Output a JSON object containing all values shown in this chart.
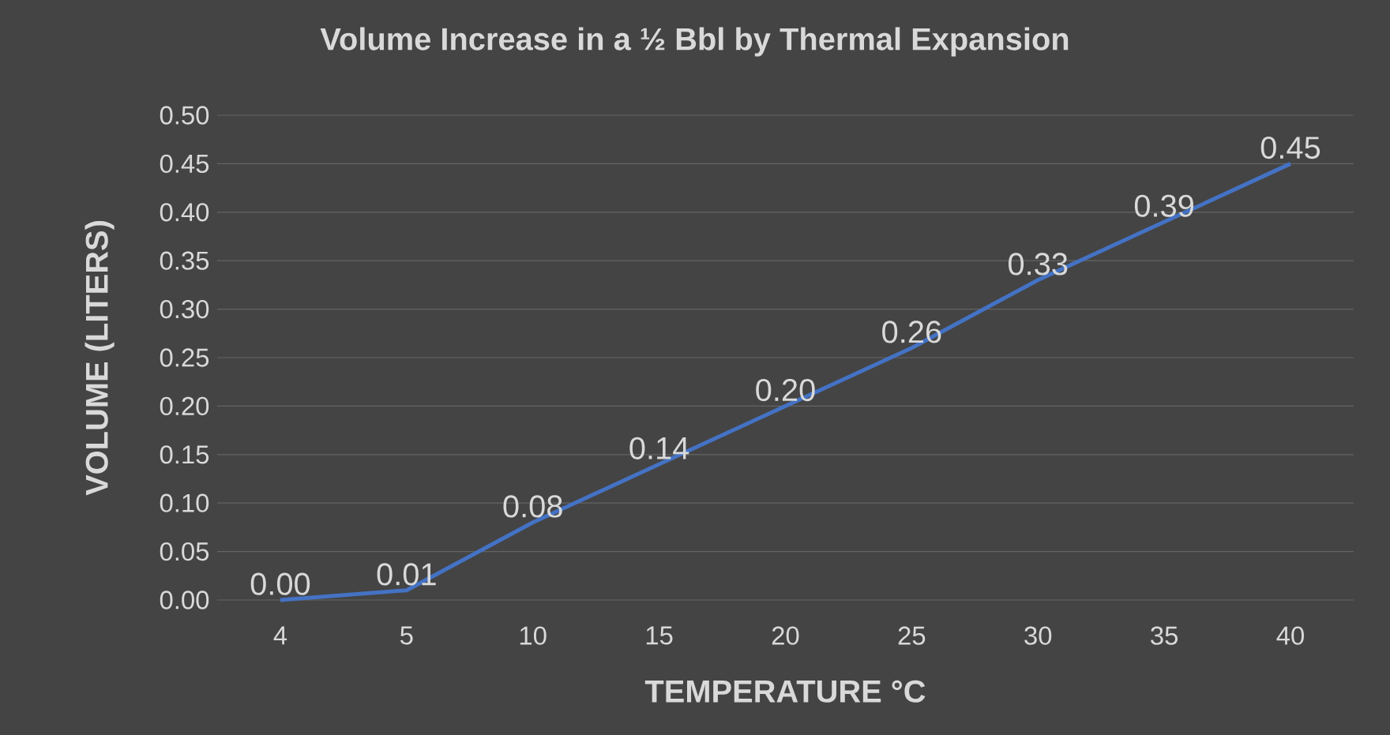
{
  "chart_data": {
    "type": "line",
    "title": "Volume Increase in a ½ Bbl by Thermal Expansion",
    "xlabel": "TEMPERATURE °C",
    "ylabel": "VOLUME (LITERS)",
    "categories": [
      "4",
      "5",
      "10",
      "15",
      "20",
      "25",
      "30",
      "35",
      "40"
    ],
    "values": [
      0.0,
      0.01,
      0.08,
      0.14,
      0.2,
      0.26,
      0.33,
      0.39,
      0.45
    ],
    "value_labels": [
      "0.00",
      "0.01",
      "0.08",
      "0.14",
      "0.20",
      "0.26",
      "0.33",
      "0.39",
      "0.45"
    ],
    "color": "#4472c4",
    "ylim": [
      0,
      0.5
    ],
    "yticks": [
      {
        "value": 0,
        "label": "0.00"
      },
      {
        "value": 0.05,
        "label": "0.05"
      },
      {
        "value": 0.1,
        "label": "0.10"
      },
      {
        "value": 0.15,
        "label": "0.15"
      },
      {
        "value": 0.2,
        "label": "0.20"
      },
      {
        "value": 0.25,
        "label": "0.25"
      },
      {
        "value": 0.3,
        "label": "0.30"
      },
      {
        "value": 0.35,
        "label": "0.35"
      },
      {
        "value": 0.4,
        "label": "0.40"
      },
      {
        "value": 0.45,
        "label": "0.45"
      },
      {
        "value": 0.5,
        "label": "0.50"
      }
    ],
    "grid": "y",
    "marker": "none",
    "line_style": "solid"
  }
}
